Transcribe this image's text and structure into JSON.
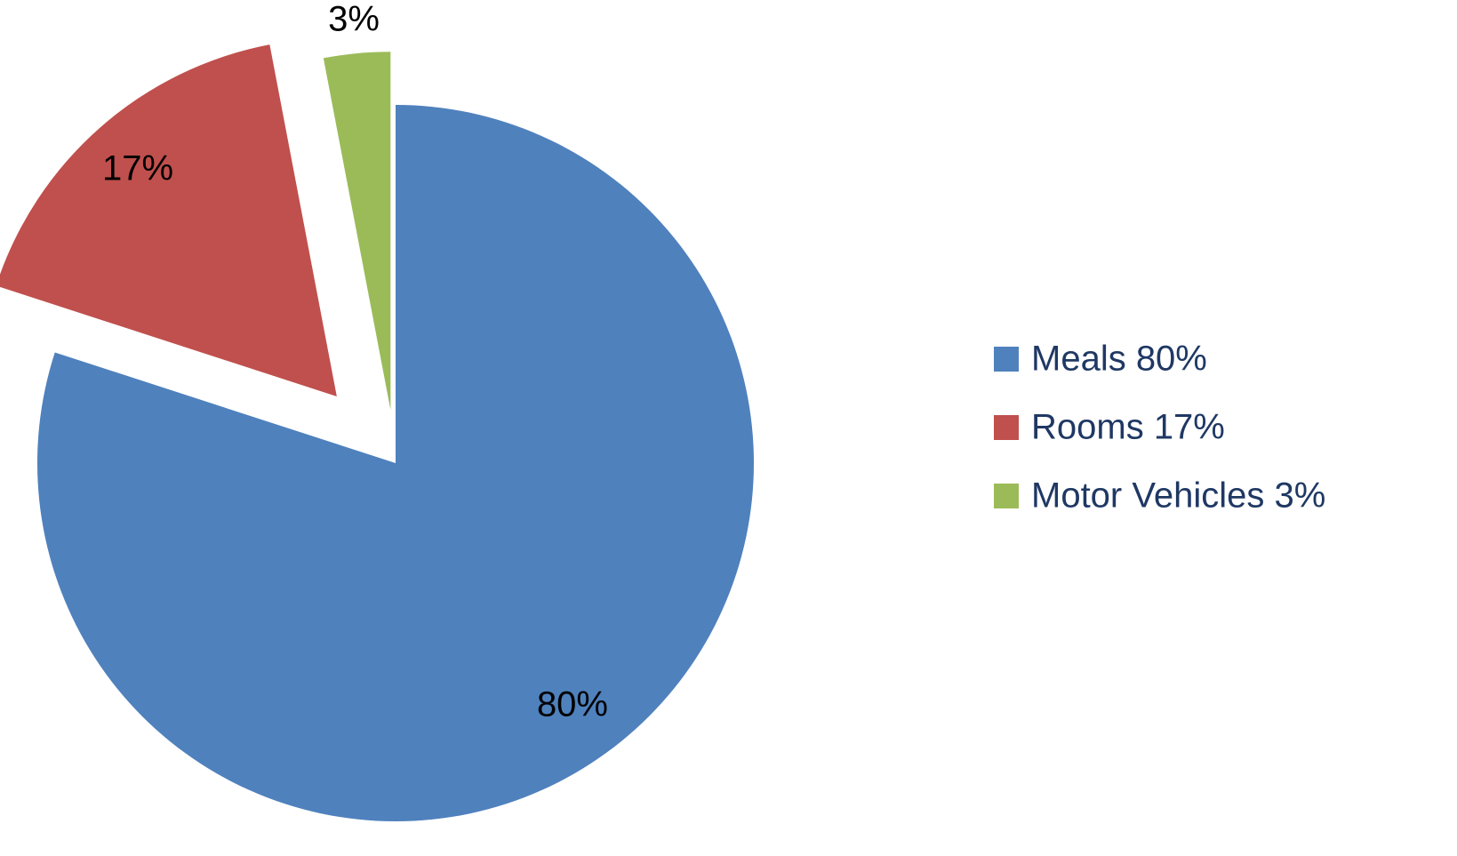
{
  "chart_data": {
    "type": "pie",
    "categories": [
      "Meals 80%",
      "Rooms 17%",
      "Motor Vehicles 3%"
    ],
    "values": [
      80,
      17,
      3
    ],
    "value_labels": [
      "80%",
      "17%",
      "3%"
    ],
    "colors": [
      "#4f81bd",
      "#c0504d",
      "#9bbb59"
    ],
    "legend": "right"
  }
}
